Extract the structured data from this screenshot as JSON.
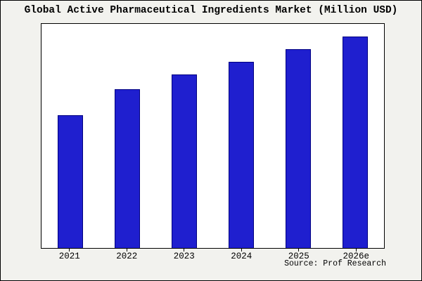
{
  "page": {
    "source": "Source: Prof Research"
  },
  "chart_data": {
    "type": "bar",
    "title": "Global Active Pharmaceutical Ingredients Market (Million USD)",
    "categories": [
      "2021",
      "2022",
      "2023",
      "2024",
      "2025",
      "2026e"
    ],
    "values": [
      63,
      75,
      82,
      88,
      94,
      100
    ],
    "xlabel": "",
    "ylabel": "",
    "ylim": [
      0,
      106
    ],
    "grid": false,
    "legend_position": "none",
    "bar_color": "#1f1fcf",
    "bar_border_color": "#000080",
    "axis_color": "#000000",
    "plot_background": "#ffffff",
    "page_background": "#f2f2ee"
  }
}
